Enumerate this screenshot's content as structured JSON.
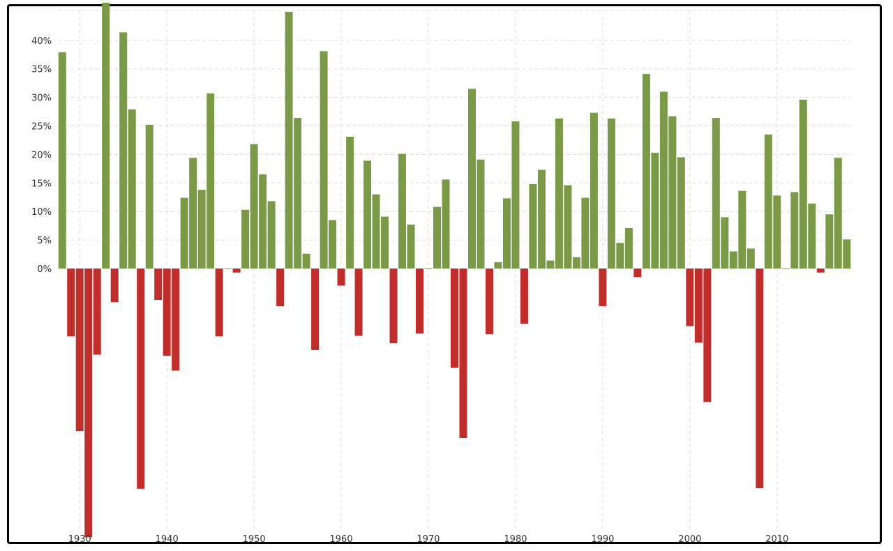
{
  "chart_data": {
    "type": "bar",
    "title": "",
    "xlabel": "",
    "ylabel": "",
    "x": [
      1928,
      1929,
      1930,
      1931,
      1932,
      1933,
      1934,
      1935,
      1936,
      1937,
      1938,
      1939,
      1940,
      1941,
      1942,
      1943,
      1944,
      1945,
      1946,
      1947,
      1948,
      1949,
      1950,
      1951,
      1952,
      1953,
      1954,
      1955,
      1956,
      1957,
      1958,
      1959,
      1960,
      1961,
      1962,
      1963,
      1964,
      1965,
      1966,
      1967,
      1968,
      1969,
      1970,
      1971,
      1972,
      1973,
      1974,
      1975,
      1976,
      1977,
      1978,
      1979,
      1980,
      1981,
      1982,
      1983,
      1984,
      1985,
      1986,
      1987,
      1988,
      1989,
      1990,
      1991,
      1992,
      1993,
      1994,
      1995,
      1996,
      1997,
      1998,
      1999,
      2000,
      2001,
      2002,
      2003,
      2004,
      2005,
      2006,
      2007,
      2008,
      2009,
      2010,
      2011,
      2012,
      2013,
      2014,
      2015,
      2016,
      2017,
      2018
    ],
    "values": [
      37.9,
      -11.9,
      -28.5,
      -47.1,
      -15.1,
      46.6,
      -5.9,
      41.4,
      27.9,
      -38.6,
      25.2,
      -5.5,
      -15.3,
      -17.9,
      12.4,
      19.4,
      13.8,
      30.7,
      -11.9,
      0.0,
      -0.7,
      10.3,
      21.8,
      16.5,
      11.8,
      -6.6,
      45.0,
      26.4,
      2.6,
      -14.3,
      38.1,
      8.5,
      -3.0,
      23.1,
      -11.8,
      18.9,
      13.0,
      9.1,
      -13.1,
      20.1,
      7.7,
      -11.4,
      0.1,
      10.8,
      15.6,
      -17.4,
      -29.7,
      31.5,
      19.1,
      -11.5,
      1.1,
      12.3,
      25.8,
      -9.7,
      14.8,
      17.3,
      1.4,
      26.3,
      14.6,
      2.0,
      12.4,
      27.3,
      -6.6,
      26.3,
      4.5,
      7.1,
      -1.5,
      34.1,
      20.3,
      31.0,
      26.7,
      19.5,
      -10.1,
      -13.0,
      -23.4,
      26.4,
      9.0,
      3.0,
      13.6,
      3.5,
      -38.5,
      23.5,
      12.8,
      0.0,
      13.4,
      29.6,
      11.4,
      -0.7,
      9.5,
      19.4,
      5.1
    ],
    "x_ticks": [
      1930,
      1940,
      1950,
      1960,
      1970,
      1980,
      1990,
      2000,
      2010
    ],
    "x_tick_labels": [
      "1930",
      "1940",
      "1950",
      "1960",
      "1970",
      "1980",
      "1990",
      "2000",
      "2010"
    ],
    "y_ticks": [
      0,
      5,
      10,
      15,
      20,
      25,
      30,
      35,
      40
    ],
    "y_tick_labels": [
      "0%",
      "5%",
      "10%",
      "15%",
      "20%",
      "25%",
      "30%",
      "35%",
      "40%"
    ],
    "xlim": [
      1927.5,
      2018.5
    ],
    "ylim": [
      -45,
      45
    ],
    "grid": true,
    "colors": {
      "positive": "#7b9a48",
      "negative": "#c02e2b",
      "grid": "#dcdcdc",
      "text": "#333333"
    }
  }
}
